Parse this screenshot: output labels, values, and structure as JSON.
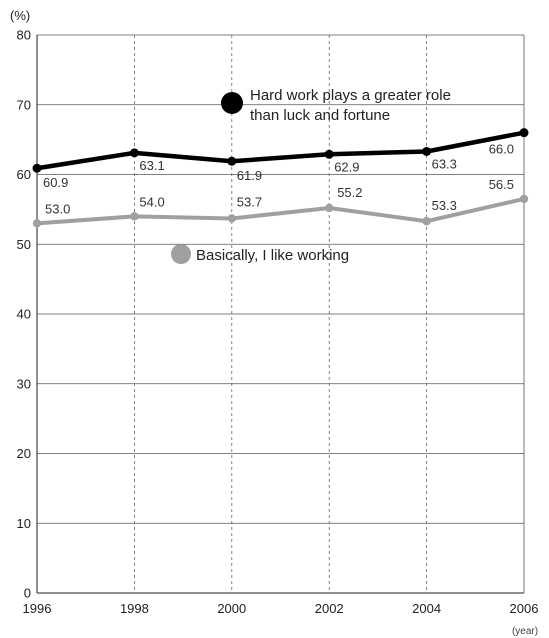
{
  "chart_data": {
    "type": "line",
    "title": "",
    "xlabel": "",
    "ylabel": "",
    "y_unit_label": "(%)",
    "x_unit_label": "(year)",
    "x": [
      1996,
      1998,
      2000,
      2002,
      2004,
      2006
    ],
    "xticks": [
      "1996",
      "1998",
      "2000",
      "2002",
      "2004",
      "2006"
    ],
    "xlim": [
      1996,
      2006
    ],
    "ylim": [
      0,
      80
    ],
    "yticks": [
      "0",
      "10",
      "20",
      "30",
      "40",
      "50",
      "60",
      "70",
      "80"
    ],
    "grid": {
      "x": "dashed",
      "y": "solid"
    },
    "series": [
      {
        "name": "Hard work plays a greater role than luck and fortune",
        "name_lines": [
          "Hard work plays a greater role",
          "than luck and fortune"
        ],
        "color": "#000000",
        "values": [
          60.9,
          63.1,
          61.9,
          62.9,
          63.3,
          66.0
        ],
        "labels": [
          "60.9",
          "63.1",
          "61.9",
          "62.9",
          "63.3",
          "66.0"
        ]
      },
      {
        "name": "Basically, I like working",
        "name_lines": [
          "Basically, I like working"
        ],
        "color": "#a0a0a0",
        "values": [
          53.0,
          54.0,
          53.7,
          55.2,
          53.3,
          56.5
        ],
        "labels": [
          "53.0",
          "54.0",
          "53.7",
          "55.2",
          "53.3",
          "56.5"
        ]
      }
    ]
  }
}
